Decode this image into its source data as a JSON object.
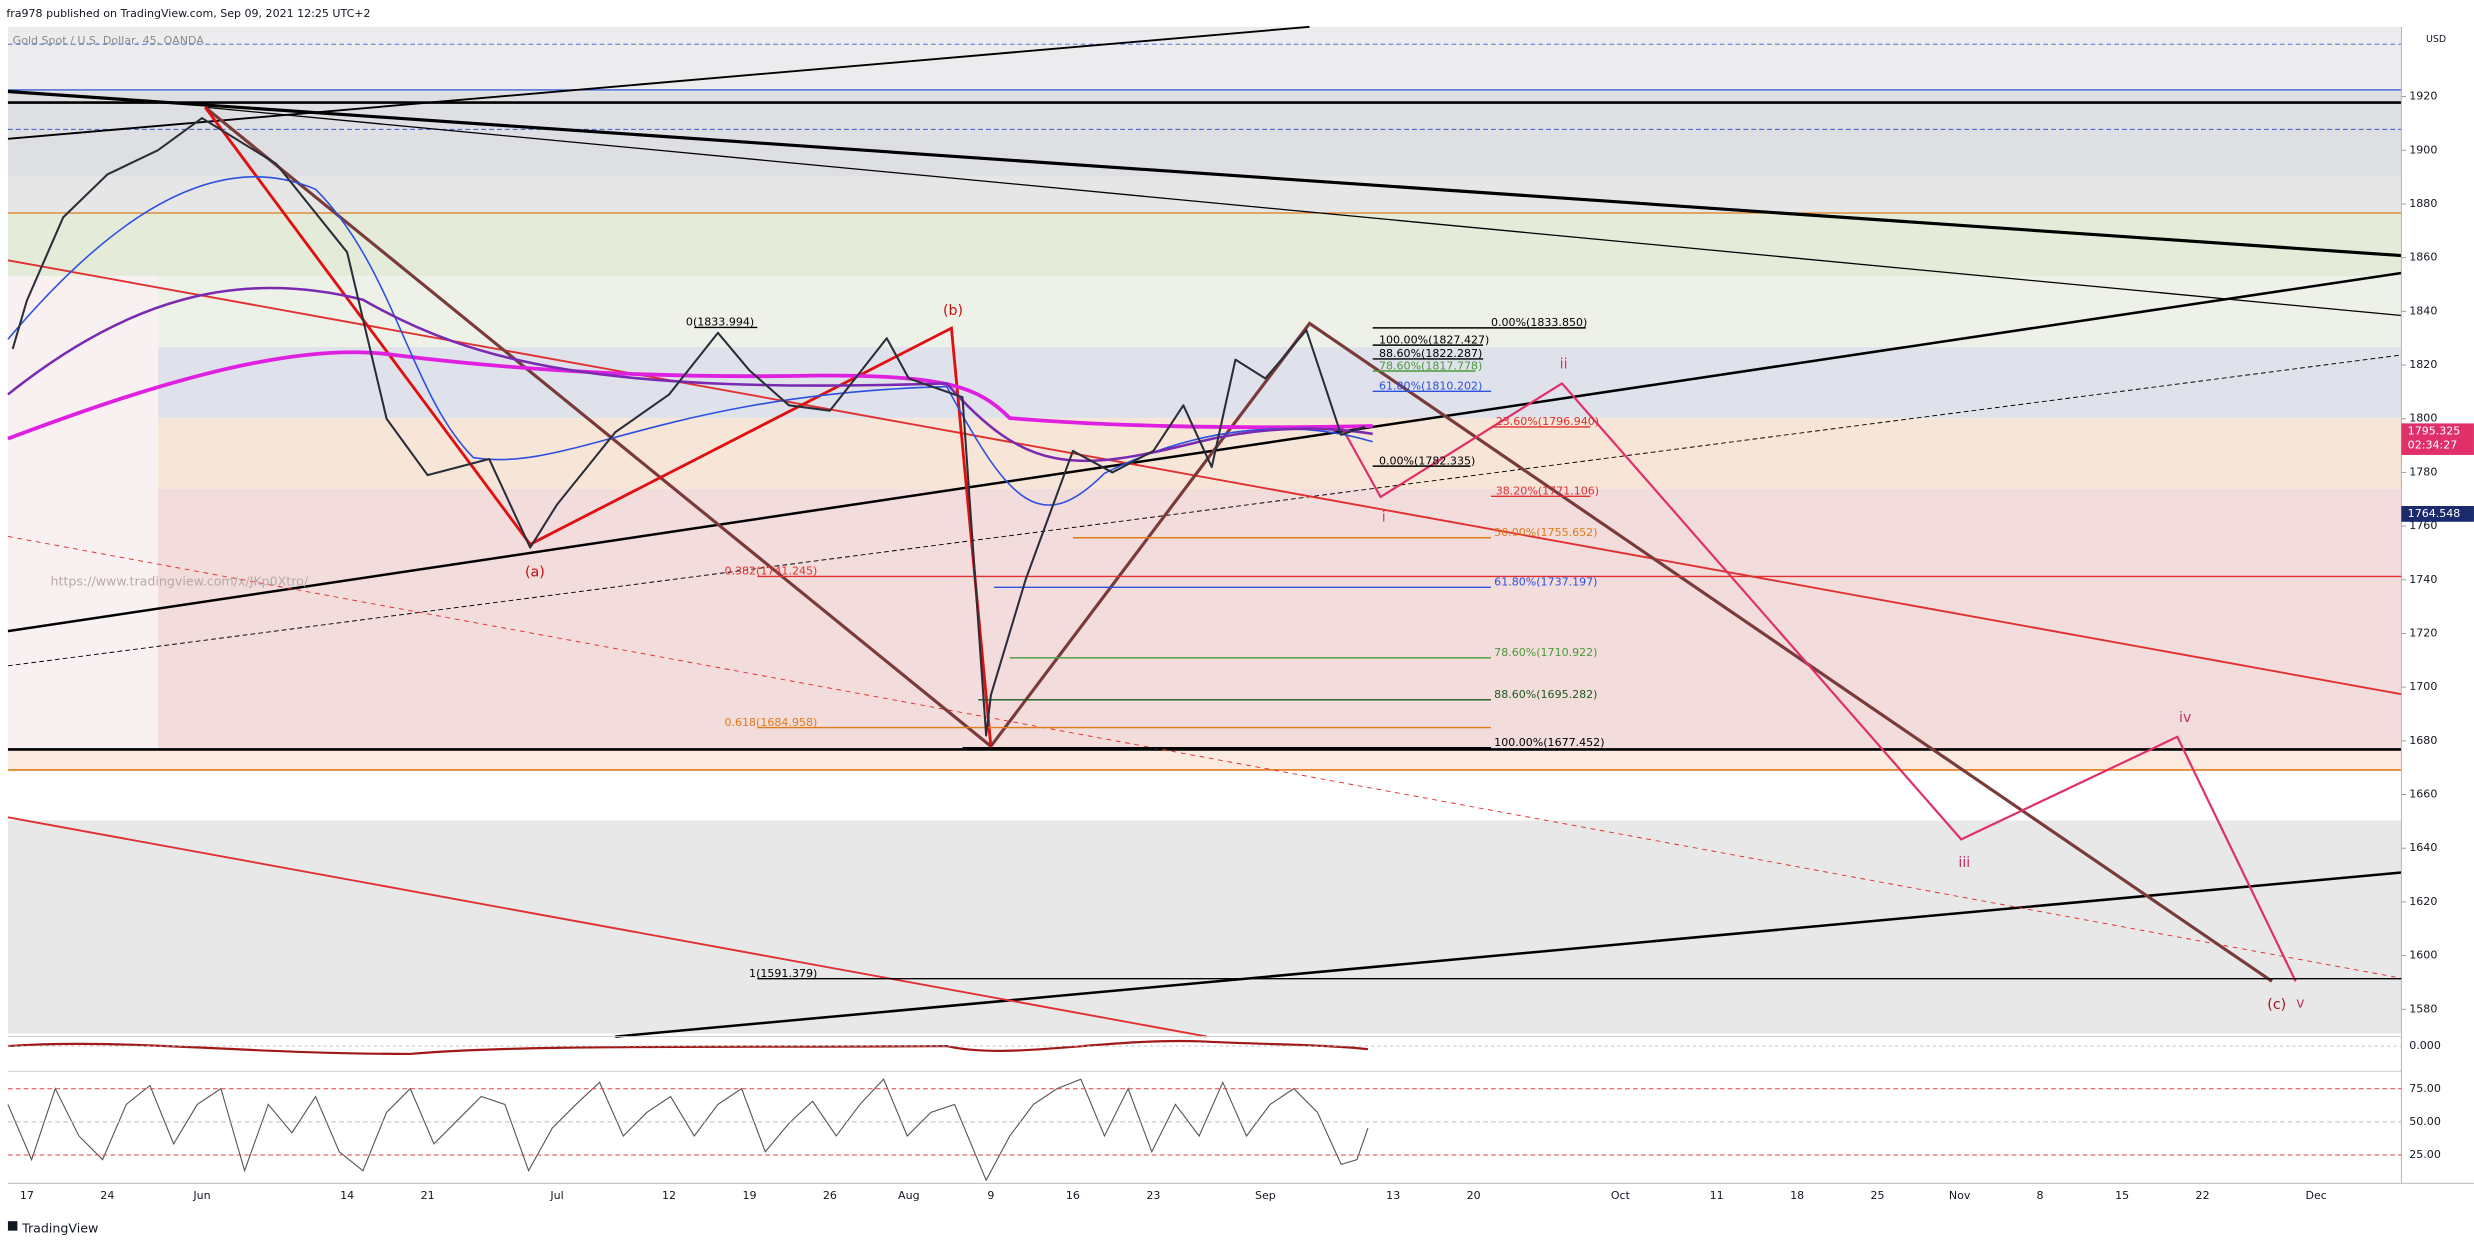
{
  "header": {
    "publisher": "fra978 published on TradingView.com, Sep 09, 2021 12:25 UTC+2",
    "symbol": "Gold Spot / U.S. Dollar, 45, OANDA",
    "watermark": "https://www.tradingview.com/x/JKp0Xtro/",
    "brand": "TradingView"
  },
  "chart_data": {
    "type": "line",
    "color": "#2a2e39",
    "categories": [
      null,
      "17",
      null,
      "24",
      null,
      "Jun",
      null,
      "14",
      null,
      "21",
      null,
      null,
      "Jul",
      null,
      "12",
      null,
      "19",
      null,
      "26",
      null,
      "Aug",
      null,
      null,
      "9",
      null,
      "16",
      null,
      "23",
      null,
      null,
      null,
      "Sep",
      null,
      null,
      null,
      "13",
      "20",
      "Oct",
      "11",
      "18",
      "25",
      "Nov",
      "8",
      "15",
      "22",
      "Dec"
    ],
    "values": [
      1826,
      1844,
      1875,
      1891,
      1900,
      1912,
      1895,
      1862,
      1800,
      1779,
      1785,
      1752,
      1768,
      1795,
      1809,
      1832,
      1818,
      1805,
      1803,
      1830,
      1815,
      1808,
      1682,
      1697,
      1740,
      1788,
      1780,
      1788,
      1805,
      1782,
      1822,
      1815,
      1833,
      1794,
      1797,
      null,
      null,
      null,
      null,
      null,
      null,
      null,
      null,
      null,
      null,
      null
    ],
    "ylim": [
      1571,
      1946
    ],
    "yticks": [
      1580,
      1600,
      1620,
      1640,
      1660,
      1680,
      1700,
      1720,
      1740,
      1760,
      1780,
      1800,
      1820,
      1840,
      1860,
      1880,
      1900,
      1920
    ],
    "currency": "USD",
    "price_labels": [
      1795.325,
      1764.548
    ],
    "countdown": "02:34:27",
    "fib_levels": [
      {
        "value": 1833.994,
        "label": "0(1833.994)"
      },
      {
        "value": 1741.245,
        "label": "0.382(1741.245)"
      },
      {
        "value": 1684.958,
        "label": "0.618(1684.958)"
      },
      {
        "value": 1591.379,
        "label": "1(1591.379)"
      },
      {
        "value": 1833.85,
        "label": "0.00%(1833.850)"
      },
      {
        "value": 1827.427,
        "label": "100.00%(1827.427)"
      },
      {
        "value": 1822.287,
        "label": "88.60%(1822.287)"
      },
      {
        "value": 1817.778,
        "label": "78.60%(1817.778)"
      },
      {
        "value": 1810.202,
        "label": "61.80%(1810.202)"
      },
      {
        "value": 1796.94,
        "label": "23.60%(1796.940)"
      },
      {
        "value": 1782.335,
        "label": "0.00%(1782.335)"
      },
      {
        "value": 1771.106,
        "label": "38.20%(1771.106)"
      },
      {
        "value": 1755.652,
        "label": "50.00%(1755.652)"
      },
      {
        "value": 1737.197,
        "label": "61.80%(1737.197)"
      },
      {
        "value": 1710.922,
        "label": "78.60%(1710.922)"
      },
      {
        "value": 1695.282,
        "label": "88.60%(1695.282)"
      },
      {
        "value": 1677.452,
        "label": "100.00%(1677.452)"
      }
    ],
    "wave_labels": [
      "(b)",
      "(a)",
      "(c)",
      "i",
      "ii",
      "iii",
      "iv",
      "v"
    ],
    "macd_yticks": [
      {
        "value": 0,
        "label": "0.000"
      }
    ],
    "rsi_ylim": [
      6,
      87
    ],
    "rsi_yticks": [
      {
        "value": 75,
        "label": "75.00"
      },
      {
        "value": 50,
        "label": "50.00"
      },
      {
        "value": 25,
        "label": "25.00"
      }
    ]
  }
}
